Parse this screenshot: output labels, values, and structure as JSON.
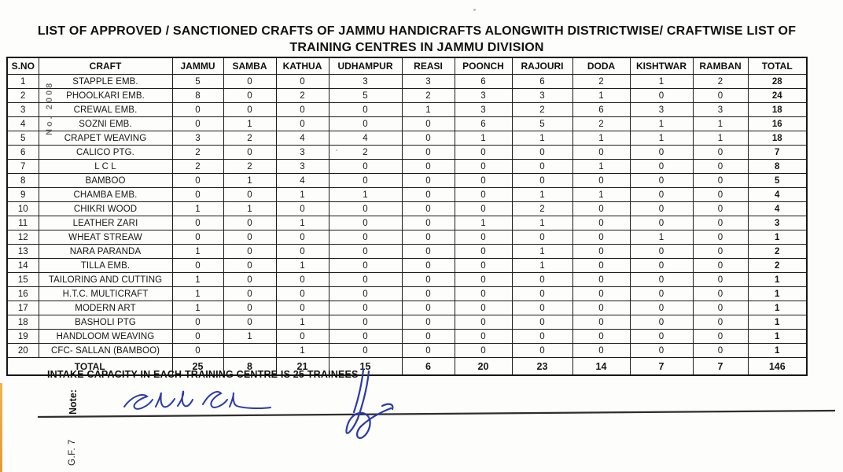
{
  "document": {
    "title_line1": "LIST OF APPROVED / SANCTIONED CRAFTS OF JAMMU HANDICRAFTS ALONGWITH DISTRICTWISE/ CRAFTWISE LIST OF",
    "title_line2": "TRAINING CENTRES IN JAMMU DIVISION",
    "stamp_vertical": "No. 2008",
    "note_label": "Note:",
    "note_text": "INTAKE CAPACITY IN EACH TRAINING CENTRE IS 25 TRAINEES",
    "form_ref": "G.F. 7",
    "signature_text": "Sudh Sh"
  },
  "colors": {
    "ink_blue": "#2a3aa8",
    "paper": "#fdfdfb",
    "table_border": "#1c1c1c",
    "edge_strip": "#eda63e",
    "rule_line": "#2e2e2e"
  },
  "table": {
    "headers": [
      "S.NO",
      "CRAFT",
      "JAMMU",
      "SAMBA",
      "KATHUA",
      "UDHAMPUR",
      "REASI",
      "POONCH",
      "RAJOURI",
      "DODA",
      "KISHTWAR",
      "RAMBAN",
      "TOTAL"
    ],
    "rows": [
      {
        "sno": "1",
        "craft": "STAPPLE EMB.",
        "values": [
          "5",
          "0",
          "0",
          "3",
          "3",
          "6",
          "6",
          "2",
          "1",
          "2",
          "28"
        ]
      },
      {
        "sno": "2",
        "craft": "PHOOLKARI EMB.",
        "values": [
          "8",
          "0",
          "2",
          "5",
          "2",
          "3",
          "3",
          "1",
          "0",
          "0",
          "24"
        ]
      },
      {
        "sno": "3",
        "craft": "CREWAL  EMB.",
        "values": [
          "0",
          "0",
          "0",
          "0",
          "1",
          "3",
          "2",
          "6",
          "3",
          "3",
          "18"
        ]
      },
      {
        "sno": "4",
        "craft": "SOZNI EMB.",
        "values": [
          "0",
          "1",
          "0",
          "0",
          "0",
          "6",
          "5",
          "2",
          "1",
          "1",
          "16"
        ]
      },
      {
        "sno": "5",
        "craft": "CRAPET WEAVING",
        "values": [
          "3",
          "2",
          "4",
          "4",
          "0",
          "1",
          "1",
          "1",
          "1",
          "1",
          "18"
        ]
      },
      {
        "sno": "6",
        "craft": "CALICO PTG.",
        "values": [
          "2",
          "0",
          "3",
          "2",
          "0",
          "0",
          "0",
          "0",
          "0",
          "0",
          "7"
        ]
      },
      {
        "sno": "7",
        "craft": "L C L",
        "values": [
          "2",
          "2",
          "3",
          "0",
          "0",
          "0",
          "0",
          "1",
          "0",
          "0",
          "8"
        ]
      },
      {
        "sno": "8",
        "craft": "BAMBOO",
        "values": [
          "0",
          "1",
          "4",
          "0",
          "0",
          "0",
          "0",
          "0",
          "0",
          "0",
          "5"
        ]
      },
      {
        "sno": "9",
        "craft": "CHAMBA EMB.",
        "values": [
          "0",
          "0",
          "1",
          "1",
          "0",
          "0",
          "1",
          "1",
          "0",
          "0",
          "4"
        ]
      },
      {
        "sno": "10",
        "craft": "CHIKRI WOOD",
        "values": [
          "1",
          "1",
          "0",
          "0",
          "0",
          "0",
          "2",
          "0",
          "0",
          "0",
          "4"
        ]
      },
      {
        "sno": "11",
        "craft": "LEATHER ZARI",
        "values": [
          "0",
          "0",
          "1",
          "0",
          "0",
          "1",
          "1",
          "0",
          "0",
          "0",
          "3"
        ]
      },
      {
        "sno": "12",
        "craft": "WHEAT STREAW",
        "values": [
          "0",
          "0",
          "0",
          "0",
          "0",
          "0",
          "0",
          "0",
          "1",
          "0",
          "1"
        ]
      },
      {
        "sno": "13",
        "craft": "NARA PARANDA",
        "values": [
          "1",
          "0",
          "0",
          "0",
          "0",
          "0",
          "1",
          "0",
          "0",
          "0",
          "2"
        ]
      },
      {
        "sno": "14",
        "craft": "TILLA EMB.",
        "values": [
          "0",
          "0",
          "1",
          "0",
          "0",
          "0",
          "1",
          "0",
          "0",
          "0",
          "2"
        ]
      },
      {
        "sno": "15",
        "craft": "TAILORING AND CUTTING",
        "values": [
          "1",
          "0",
          "0",
          "0",
          "0",
          "0",
          "0",
          "0",
          "0",
          "0",
          "1"
        ]
      },
      {
        "sno": "16",
        "craft": "H.T.C. MULTICRAFT",
        "values": [
          "1",
          "0",
          "0",
          "0",
          "0",
          "0",
          "0",
          "0",
          "0",
          "0",
          "1"
        ]
      },
      {
        "sno": "17",
        "craft": "MODERN ART",
        "values": [
          "1",
          "0",
          "0",
          "0",
          "0",
          "0",
          "0",
          "0",
          "0",
          "0",
          "1"
        ]
      },
      {
        "sno": "18",
        "craft": "BASHOLI PTG",
        "values": [
          "0",
          "0",
          "1",
          "0",
          "0",
          "0",
          "0",
          "0",
          "0",
          "0",
          "1"
        ]
      },
      {
        "sno": "19",
        "craft": "HANDLOOM WEAVING",
        "values": [
          "0",
          "1",
          "0",
          "0",
          "0",
          "0",
          "0",
          "0",
          "0",
          "0",
          "1"
        ]
      },
      {
        "sno": "20",
        "craft": "CFC- SALLAN (BAMBOO)",
        "values": [
          "0",
          "",
          "1",
          "0",
          "0",
          "0",
          "0",
          "0",
          "0",
          "0",
          "1"
        ]
      }
    ],
    "total_row": {
      "label": "TOTAL",
      "values": [
        "25",
        "8",
        "21",
        "15",
        "6",
        "20",
        "23",
        "14",
        "7",
        "7",
        "146"
      ]
    }
  }
}
